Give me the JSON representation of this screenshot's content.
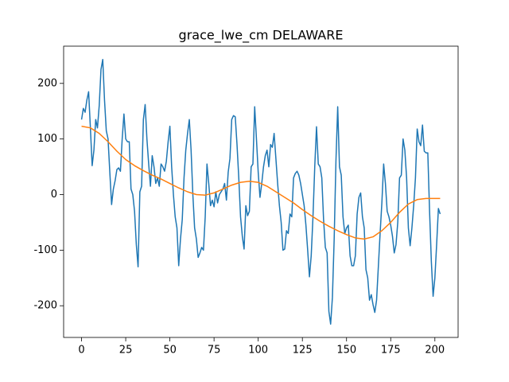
{
  "chart_data": {
    "type": "line",
    "title": "grace_lwe_cm DELAWARE",
    "xlim": [
      -10.15,
      213.15
    ],
    "xticks": [
      0,
      25,
      50,
      75,
      100,
      125,
      150,
      175,
      200
    ],
    "ylim": [
      -257,
      267
    ],
    "yticks": [
      -200,
      -100,
      0,
      100,
      200
    ],
    "grid": false,
    "series": [
      {
        "color": "#1f77b4",
        "x": [
          0,
          1,
          2,
          3,
          4,
          5,
          6,
          7,
          8,
          9,
          10,
          11,
          12,
          13,
          14,
          15,
          16,
          17,
          18,
          19,
          20,
          21,
          22,
          23,
          24,
          25,
          26,
          27,
          28,
          29,
          30,
          31,
          32,
          33,
          34,
          35,
          36,
          37,
          38,
          39,
          40,
          41,
          42,
          43,
          44,
          45,
          46,
          47,
          48,
          49,
          50,
          51,
          52,
          53,
          54,
          55,
          56,
          57,
          58,
          59,
          60,
          61,
          62,
          63,
          64,
          65,
          66,
          67,
          68,
          69,
          70,
          71,
          72,
          73,
          74,
          75,
          76,
          77,
          78,
          79,
          80,
          81,
          82,
          83,
          84,
          85,
          86,
          87,
          88,
          89,
          90,
          91,
          92,
          93,
          94,
          95,
          96,
          97,
          98,
          99,
          100,
          101,
          102,
          103,
          104,
          105,
          106,
          107,
          108,
          109,
          110,
          111,
          112,
          113,
          114,
          115,
          116,
          117,
          118,
          119,
          120,
          121,
          122,
          123,
          124,
          125,
          126,
          127,
          128,
          129,
          130,
          131,
          132,
          133,
          134,
          135,
          136,
          137,
          138,
          139,
          140,
          141,
          142,
          143,
          144,
          145,
          146,
          147,
          148,
          149,
          150,
          151,
          152,
          153,
          154,
          155,
          156,
          157,
          158,
          159,
          160,
          161,
          162,
          163,
          164,
          165,
          166,
          167,
          168,
          169,
          170,
          171,
          172,
          173,
          174,
          175,
          176,
          177,
          178,
          179,
          180,
          181,
          182,
          183,
          184,
          185,
          186,
          187,
          188,
          189,
          190,
          191,
          192,
          193,
          194,
          195,
          196,
          197,
          198,
          199,
          200,
          201,
          202,
          203
        ],
        "values": [
          135,
          155,
          148,
          170,
          185,
          120,
          52,
          80,
          135,
          120,
          160,
          225,
          243,
          170,
          115,
          100,
          40,
          -18,
          10,
          25,
          45,
          48,
          42,
          100,
          145,
          100,
          95,
          95,
          10,
          0,
          -30,
          -90,
          -130,
          5,
          15,
          135,
          162,
          100,
          55,
          15,
          70,
          50,
          20,
          30,
          15,
          55,
          50,
          42,
          60,
          95,
          123,
          50,
          0,
          -40,
          -60,
          -128,
          -80,
          -45,
          30,
          80,
          110,
          135,
          80,
          0,
          -60,
          -80,
          -113,
          -105,
          -95,
          -100,
          -40,
          55,
          20,
          -20,
          -10,
          -22,
          5,
          -15,
          0,
          5,
          10,
          20,
          -10,
          40,
          65,
          135,
          142,
          140,
          90,
          30,
          -40,
          -75,
          -98,
          -20,
          -38,
          -30,
          50,
          55,
          158,
          100,
          40,
          -5,
          20,
          50,
          70,
          80,
          50,
          90,
          85,
          110,
          65,
          20,
          -20,
          -50,
          -100,
          -98,
          -65,
          -70,
          -35,
          -40,
          30,
          38,
          42,
          35,
          20,
          0,
          -20,
          -55,
          -100,
          -148,
          -110,
          -40,
          50,
          122,
          55,
          50,
          30,
          -45,
          -95,
          -105,
          -210,
          -233,
          -185,
          -80,
          60,
          158,
          50,
          35,
          -40,
          -70,
          -60,
          -55,
          -110,
          -128,
          -128,
          -110,
          -35,
          -5,
          3,
          -40,
          -60,
          -135,
          -150,
          -190,
          -180,
          -198,
          -212,
          -190,
          -130,
          -70,
          -15,
          55,
          20,
          -30,
          -40,
          -55,
          -75,
          -105,
          -90,
          -50,
          30,
          35,
          100,
          80,
          30,
          -60,
          -92,
          -60,
          -20,
          30,
          118,
          95,
          88,
          125,
          78,
          75,
          75,
          -30,
          -120,
          -183,
          -150,
          -90,
          -25,
          -35
        ]
      },
      {
        "color": "#ff7f0e",
        "x": [
          0,
          5,
          10,
          15,
          20,
          25,
          30,
          35,
          40,
          45,
          50,
          55,
          60,
          65,
          70,
          75,
          80,
          85,
          90,
          95,
          100,
          105,
          110,
          115,
          120,
          125,
          130,
          135,
          140,
          145,
          150,
          155,
          160,
          165,
          170,
          175,
          180,
          185,
          190,
          195,
          200,
          203
        ],
        "values": [
          123,
          120,
          110,
          95,
          78,
          63,
          52,
          43,
          35,
          28,
          20,
          12,
          5,
          0,
          -1,
          3,
          10,
          17,
          22,
          24,
          22,
          15,
          5,
          -5,
          -15,
          -27,
          -38,
          -48,
          -57,
          -65,
          -72,
          -78,
          -80,
          -76,
          -65,
          -50,
          -32,
          -17,
          -9,
          -7,
          -7,
          -7
        ]
      }
    ]
  }
}
